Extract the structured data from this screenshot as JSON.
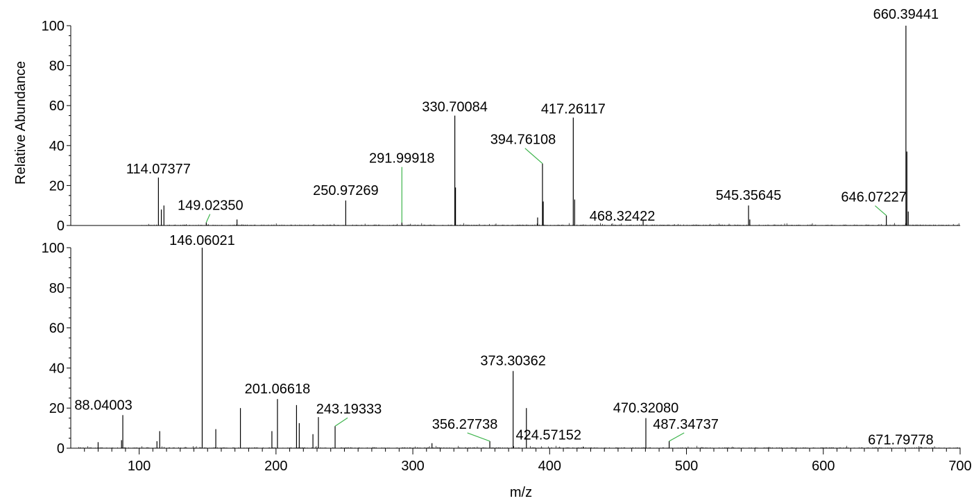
{
  "chart_data": [
    {
      "type": "line",
      "title": "",
      "xlabel": "",
      "ylabel": "Relative Abundance",
      "xlim": [
        50,
        700
      ],
      "ylim": [
        0,
        100
      ],
      "y_ticks": [
        "0",
        "20",
        "40",
        "60",
        "80",
        "100"
      ],
      "x_ticks": [],
      "grid": false,
      "series": [
        {
          "peaks": [
            {
              "mz": 114.07377,
              "intensity": 24,
              "label": "114.07377"
            },
            {
              "mz": 116.2,
              "intensity": 8
            },
            {
              "mz": 118.1,
              "intensity": 10
            },
            {
              "mz": 149.0235,
              "intensity": 1.5,
              "label": "149.02350",
              "leader": true
            },
            {
              "mz": 171.5,
              "intensity": 3
            },
            {
              "mz": 250.97269,
              "intensity": 12.5,
              "label": "250.97269"
            },
            {
              "mz": 291.99918,
              "intensity": 1.5,
              "label": "291.99918",
              "leader": true
            },
            {
              "mz": 330.70084,
              "intensity": 55,
              "label": "330.70084"
            },
            {
              "mz": 331.2,
              "intensity": 19
            },
            {
              "mz": 391.2,
              "intensity": 4
            },
            {
              "mz": 394.76108,
              "intensity": 31,
              "label": "394.76108",
              "leader": true
            },
            {
              "mz": 395.3,
              "intensity": 12
            },
            {
              "mz": 417.26117,
              "intensity": 54,
              "label": "417.26117"
            },
            {
              "mz": 418.3,
              "intensity": 13
            },
            {
              "mz": 468.32422,
              "intensity": 2.5,
              "label": "468.32422"
            },
            {
              "mz": 545.35645,
              "intensity": 10,
              "label": "545.35645"
            },
            {
              "mz": 546.3,
              "intensity": 3
            },
            {
              "mz": 646.07227,
              "intensity": 5,
              "label": "646.07227",
              "leader": true
            },
            {
              "mz": 660.39441,
              "intensity": 100,
              "label": "660.39441"
            },
            {
              "mz": 661.1,
              "intensity": 37
            },
            {
              "mz": 662.1,
              "intensity": 7
            }
          ]
        }
      ]
    },
    {
      "type": "line",
      "title": "",
      "xlabel": "m/z",
      "ylabel": "",
      "xlim": [
        50,
        700
      ],
      "ylim": [
        0,
        100
      ],
      "y_ticks": [
        "0",
        "20",
        "40",
        "60",
        "80",
        "100"
      ],
      "x_ticks": [
        "100",
        "200",
        "300",
        "400",
        "500",
        "600",
        "700"
      ],
      "grid": false,
      "series": [
        {
          "peaks": [
            {
              "mz": 70.0,
              "intensity": 3
            },
            {
              "mz": 88.04003,
              "intensity": 16.5,
              "label": "88.04003"
            },
            {
              "mz": 87.1,
              "intensity": 4
            },
            {
              "mz": 113.0,
              "intensity": 3.5
            },
            {
              "mz": 115.0,
              "intensity": 8.5
            },
            {
              "mz": 146.06021,
              "intensity": 100,
              "label": "146.06021"
            },
            {
              "mz": 156.0,
              "intensity": 9.5
            },
            {
              "mz": 174.0,
              "intensity": 20
            },
            {
              "mz": 197.0,
              "intensity": 8.5
            },
            {
              "mz": 201.06618,
              "intensity": 24.5,
              "label": "201.06618"
            },
            {
              "mz": 215.0,
              "intensity": 21.5
            },
            {
              "mz": 217.0,
              "intensity": 12.5
            },
            {
              "mz": 227.0,
              "intensity": 7
            },
            {
              "mz": 231.0,
              "intensity": 15.5
            },
            {
              "mz": 243.19333,
              "intensity": 11,
              "label": "243.19333",
              "leader": true
            },
            {
              "mz": 314.0,
              "intensity": 2.5
            },
            {
              "mz": 356.27738,
              "intensity": 3.5,
              "label": "356.27738",
              "leader": true
            },
            {
              "mz": 373.30362,
              "intensity": 38.5,
              "label": "373.30362"
            },
            {
              "mz": 383.0,
              "intensity": 20
            },
            {
              "mz": 424.57152,
              "intensity": 0.8,
              "label": "424.57152"
            },
            {
              "mz": 470.3208,
              "intensity": 15,
              "label": "470.32080"
            },
            {
              "mz": 487.34737,
              "intensity": 3.5,
              "label": "487.34737",
              "leader": true
            },
            {
              "mz": 671.79778,
              "intensity": 0.5,
              "label": "671.79778"
            }
          ]
        }
      ]
    }
  ]
}
